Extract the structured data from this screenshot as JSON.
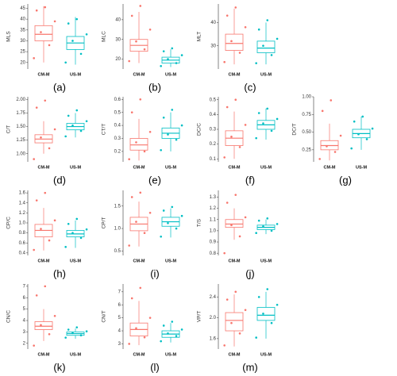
{
  "chart_data": [
    {
      "type": "box",
      "ylabel": "MLS",
      "caption": "(a)",
      "categories": [
        "CM-M",
        "US-M"
      ],
      "ylim": [
        17,
        47
      ],
      "yticks": [
        20,
        25,
        30,
        35,
        40,
        45
      ],
      "boxes": [
        {
          "color": "#f8766d",
          "stats": [
            20,
            30,
            33,
            37,
            46
          ],
          "points": [
            22,
            28,
            34,
            39,
            44,
            45.5
          ]
        },
        {
          "color": "#00bfc4",
          "stats": [
            19,
            26,
            29,
            32,
            41
          ],
          "points": [
            20,
            24,
            30,
            33,
            38,
            40
          ]
        }
      ]
    },
    {
      "type": "box",
      "ylabel": "MLC",
      "caption": "(b)",
      "categories": [
        "CM-M",
        "US-M"
      ],
      "ylim": [
        15,
        48
      ],
      "yticks": [
        20,
        30,
        40
      ],
      "boxes": [
        {
          "color": "#f8766d",
          "stats": [
            18,
            24,
            27,
            30,
            44
          ],
          "points": [
            19,
            25,
            29,
            35,
            42,
            47
          ]
        },
        {
          "color": "#00bfc4",
          "stats": [
            16,
            18,
            19.5,
            21,
            25
          ],
          "points": [
            16.5,
            18,
            20,
            22,
            24,
            25.5
          ]
        }
      ]
    },
    {
      "type": "box",
      "ylabel": "MLT",
      "caption": "(c)",
      "categories": [
        "CM-M",
        "US-M"
      ],
      "ylim": [
        20,
        48
      ],
      "yticks": [
        30,
        40
      ],
      "boxes": [
        {
          "color": "#f8766d",
          "stats": [
            22,
            28,
            31,
            35,
            46
          ],
          "points": [
            23,
            27,
            32,
            38,
            43,
            46.5
          ]
        },
        {
          "color": "#00bfc4",
          "stats": [
            22,
            27,
            29,
            32,
            40
          ],
          "points": [
            22.5,
            26,
            30,
            33,
            37,
            41
          ]
        }
      ]
    },
    {
      "type": "box",
      "ylabel": "C/T",
      "caption": "(d)",
      "categories": [
        "CM-M",
        "US-M"
      ],
      "ylim": [
        0.85,
        2.05
      ],
      "yticks": [
        {
          "value": 1,
          "label": "1.00"
        },
        {
          "value": 1.25,
          "label": "1.25"
        },
        {
          "value": 1.5,
          "label": "1.50"
        },
        {
          "value": 1.75,
          "label": "1.75"
        },
        {
          "value": 2,
          "label": "2.00"
        }
      ],
      "boxes": [
        {
          "color": "#f8766d",
          "stats": [
            1,
            1.2,
            1.27,
            1.35,
            1.6
          ],
          "points": [
            0.9,
            1.1,
            1.3,
            1.45,
            1.85,
            1.98
          ]
        },
        {
          "color": "#00bfc4",
          "stats": [
            1.3,
            1.44,
            1.5,
            1.56,
            1.75
          ],
          "points": [
            1.32,
            1.42,
            1.52,
            1.6,
            1.7,
            1.8
          ]
        }
      ]
    },
    {
      "type": "box",
      "ylabel": "CT/T",
      "caption": "(e)",
      "categories": [
        "CM-M",
        "US-M"
      ],
      "ylim": [
        0.12,
        0.62
      ],
      "yticks": [
        0.2,
        0.3,
        0.4,
        0.5,
        0.6
      ],
      "boxes": [
        {
          "color": "#f8766d",
          "stats": [
            0.13,
            0.21,
            0.25,
            0.3,
            0.45
          ],
          "points": [
            0.14,
            0.2,
            0.27,
            0.35,
            0.5,
            0.6
          ]
        },
        {
          "color": "#00bfc4",
          "stats": [
            0.2,
            0.3,
            0.34,
            0.38,
            0.5
          ],
          "points": [
            0.21,
            0.29,
            0.33,
            0.4,
            0.46,
            0.52
          ]
        }
      ]
    },
    {
      "type": "box",
      "ylabel": "DC/C",
      "caption": "(f)",
      "categories": [
        "CM-M",
        "US-M"
      ],
      "ylim": [
        0.08,
        0.52
      ],
      "yticks": [
        0.1,
        0.2,
        0.3,
        0.4,
        0.5
      ],
      "boxes": [
        {
          "color": "#f8766d",
          "stats": [
            0.1,
            0.19,
            0.24,
            0.29,
            0.42
          ],
          "points": [
            0.11,
            0.18,
            0.25,
            0.33,
            0.45,
            0.5
          ]
        },
        {
          "color": "#00bfc4",
          "stats": [
            0.23,
            0.3,
            0.33,
            0.36,
            0.44
          ],
          "points": [
            0.24,
            0.29,
            0.34,
            0.37,
            0.41,
            0.44
          ]
        }
      ]
    },
    {
      "type": "box",
      "ylabel": "DC/T",
      "caption": "(g)",
      "categories": [
        "CM-M",
        "US-M"
      ],
      "ylim": [
        0.08,
        1
      ],
      "yticks": [
        {
          "value": 0.25,
          "label": "0.25"
        },
        {
          "value": 0.5,
          "label": "0.50"
        },
        {
          "value": 0.75,
          "label": "0.75"
        },
        {
          "value": 1,
          "label": "1.00"
        }
      ],
      "boxes": [
        {
          "color": "#f8766d",
          "stats": [
            0.1,
            0.25,
            0.31,
            0.38,
            0.62
          ],
          "points": [
            0.12,
            0.22,
            0.3,
            0.45,
            0.8,
            0.95
          ]
        },
        {
          "color": "#00bfc4",
          "stats": [
            0.25,
            0.42,
            0.48,
            0.54,
            0.72
          ],
          "points": [
            0.27,
            0.4,
            0.47,
            0.55,
            0.65,
            0.72
          ]
        }
      ]
    },
    {
      "type": "box",
      "ylabel": "CP/C",
      "caption": "(h)",
      "categories": [
        "CM-M",
        "US-M"
      ],
      "ylim": [
        0.35,
        1.65
      ],
      "yticks": [
        0.4,
        0.6,
        0.8,
        {
          "value": 1,
          "label": "1.0"
        },
        1.2,
        1.4,
        1.6
      ],
      "boxes": [
        {
          "color": "#f8766d",
          "stats": [
            0.45,
            0.72,
            0.85,
            0.97,
            1.3
          ],
          "points": [
            0.46,
            0.65,
            0.88,
            1.05,
            1.45,
            1.6
          ]
        },
        {
          "color": "#00bfc4",
          "stats": [
            0.5,
            0.72,
            0.78,
            0.85,
            1.05
          ],
          "points": [
            0.52,
            0.7,
            0.8,
            0.87,
            0.98,
            1.08
          ]
        }
      ]
    },
    {
      "type": "box",
      "ylabel": "CP/T",
      "caption": "(i)",
      "categories": [
        "CM-M",
        "US-M"
      ],
      "ylim": [
        0.4,
        1.85
      ],
      "yticks": [
        0.5,
        {
          "value": 1,
          "label": "1.0"
        },
        1.5
      ],
      "boxes": [
        {
          "color": "#f8766d",
          "stats": [
            0.6,
            0.95,
            1.1,
            1.25,
            1.6
          ],
          "points": [
            0.62,
            0.9,
            1.15,
            1.35,
            1.7,
            1.8
          ]
        },
        {
          "color": "#00bfc4",
          "stats": [
            0.8,
            1.05,
            1.15,
            1.25,
            1.45
          ],
          "points": [
            0.82,
            1,
            1.12,
            1.28,
            1.4,
            1.48
          ]
        }
      ]
    },
    {
      "type": "box",
      "ylabel": "T/S",
      "caption": "(j)",
      "categories": [
        "CM-M",
        "US-M"
      ],
      "ylim": [
        0.78,
        1.36
      ],
      "yticks": [
        0.8,
        0.9,
        {
          "value": 1,
          "label": "1.0"
        },
        1.1,
        1.2,
        1.3
      ],
      "boxes": [
        {
          "color": "#f8766d",
          "stats": [
            0.92,
            1.03,
            1.06,
            1.1,
            1.2
          ],
          "points": [
            0.8,
            0.95,
            1.05,
            1.12,
            1.25,
            1.32
          ]
        },
        {
          "color": "#00bfc4",
          "stats": [
            0.97,
            1.01,
            1.03,
            1.05,
            1.1
          ],
          "points": [
            0.98,
            1,
            1.04,
            1.06,
            1.09,
            1.11
          ]
        }
      ]
    },
    {
      "type": "box",
      "ylabel": "CN/C",
      "caption": "(k)",
      "categories": [
        "CM-M",
        "US-M"
      ],
      "ylim": [
        1.5,
        7.2
      ],
      "yticks": [
        2,
        3,
        4,
        5,
        6,
        7
      ],
      "boxes": [
        {
          "color": "#f8766d",
          "stats": [
            2.2,
            3.2,
            3.5,
            3.9,
            5
          ],
          "points": [
            1.8,
            2.8,
            3.6,
            4.4,
            6.2,
            7
          ]
        },
        {
          "color": "#00bfc4",
          "stats": [
            2.4,
            2.7,
            2.85,
            3,
            3.3
          ],
          "points": [
            2.5,
            2.7,
            2.9,
            3.05,
            3.2,
            3.4
          ]
        }
      ]
    },
    {
      "type": "box",
      "ylabel": "CN/T",
      "caption": "(l)",
      "categories": [
        "CM-M",
        "US-M"
      ],
      "ylim": [
        2.6,
        7.6
      ],
      "yticks": [
        3,
        4,
        5,
        6,
        7
      ],
      "boxes": [
        {
          "color": "#f8766d",
          "stats": [
            2.9,
            3.6,
            4.1,
            4.6,
            6.3
          ],
          "points": [
            3,
            3.5,
            4.2,
            5,
            6.5,
            7.3
          ]
        },
        {
          "color": "#00bfc4",
          "stats": [
            3.1,
            3.5,
            3.75,
            4,
            4.6
          ],
          "points": [
            3.2,
            3.6,
            3.8,
            4.1,
            4.4,
            4.7
          ]
        }
      ]
    },
    {
      "type": "box",
      "ylabel": "VP/T",
      "caption": "(m)",
      "categories": [
        "CM-M",
        "US-M"
      ],
      "ylim": [
        1.4,
        2.65
      ],
      "yticks": [
        1.6,
        {
          "value": 2,
          "label": "2.0"
        },
        2.4
      ],
      "boxes": [
        {
          "color": "#f8766d",
          "stats": [
            1.45,
            1.75,
            1.95,
            2.1,
            2.45
          ],
          "points": [
            1.47,
            1.7,
            1.9,
            2.15,
            2.35,
            2.5
          ]
        },
        {
          "color": "#00bfc4",
          "stats": [
            1.6,
            1.95,
            2.05,
            2.2,
            2.5
          ],
          "points": [
            1.62,
            1.9,
            2.08,
            2.25,
            2.4,
            2.55
          ]
        }
      ]
    }
  ]
}
